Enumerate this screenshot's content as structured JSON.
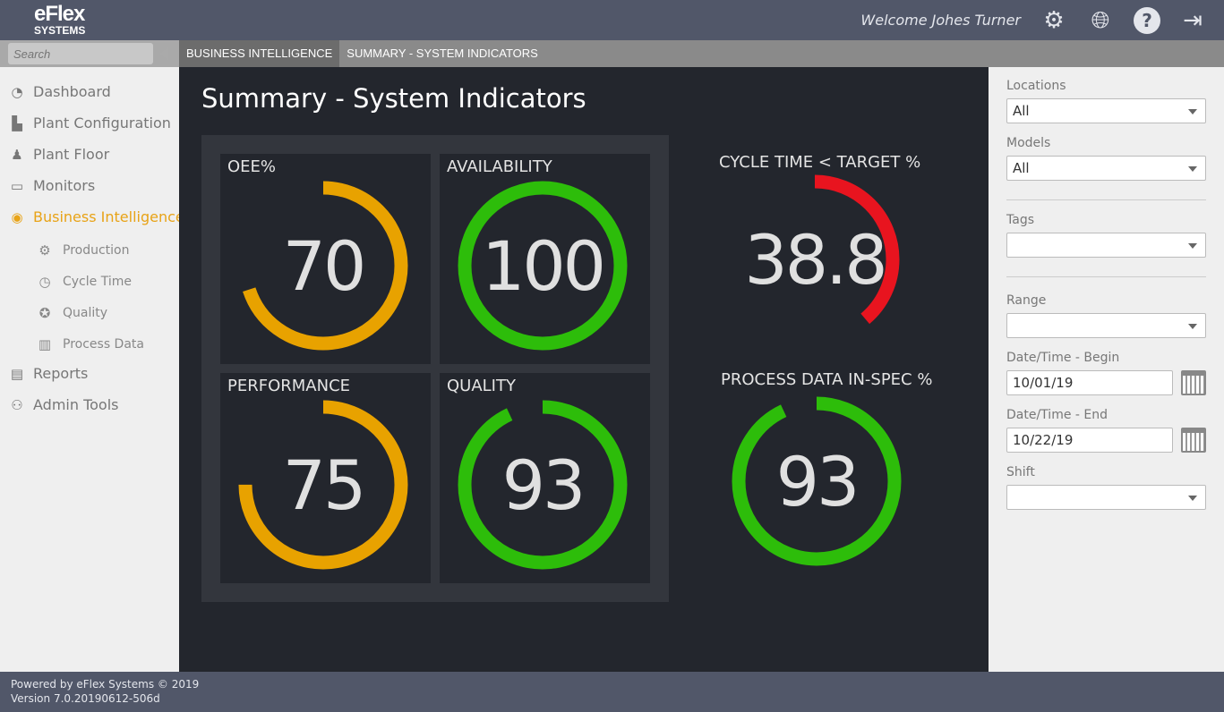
{
  "header": {
    "logo_line1": "eFlex",
    "logo_line2": "SYSTEMS",
    "welcome": "Welcome  Johes Turner"
  },
  "search": {
    "placeholder": "Search"
  },
  "breadcrumb": [
    "BUSINESS INTELLIGENCE",
    "SUMMARY - SYSTEM INDICATORS"
  ],
  "sidebar": {
    "items": [
      {
        "label": "Dashboard",
        "icon": "gauge-icon"
      },
      {
        "label": "Plant Configuration",
        "icon": "factory-icon"
      },
      {
        "label": "Plant Floor",
        "icon": "conveyor-icon"
      },
      {
        "label": "Monitors",
        "icon": "monitor-icon"
      },
      {
        "label": "Business Intelligence",
        "icon": "bi-search-icon",
        "active": true
      },
      {
        "label": "Reports",
        "icon": "report-icon"
      },
      {
        "label": "Admin Tools",
        "icon": "user-gear-icon"
      }
    ],
    "subitems": [
      {
        "label": "Production"
      },
      {
        "label": "Cycle Time"
      },
      {
        "label": "Quality"
      },
      {
        "label": "Process Data"
      }
    ]
  },
  "main": {
    "title": "Summary - System Indicators",
    "gauges": [
      {
        "label": "OEE%",
        "value": "70",
        "percent": 70,
        "color": "#e8a200"
      },
      {
        "label": "AVAILABILITY",
        "value": "100",
        "percent": 100,
        "color": "#2dbd0a"
      },
      {
        "label": "PERFORMANCE",
        "value": "75",
        "percent": 75,
        "color": "#e8a200"
      },
      {
        "label": "QUALITY",
        "value": "93",
        "percent": 93,
        "color": "#2dbd0a"
      },
      {
        "label": "CYCLE TIME < TARGET %",
        "value": "38.8",
        "percent": 38.8,
        "color": "#e8141f"
      },
      {
        "label": "PROCESS DATA IN-SPEC %",
        "value": "93",
        "percent": 93,
        "color": "#2dbd0a"
      }
    ]
  },
  "filters": {
    "locations": {
      "label": "Locations",
      "value": "All"
    },
    "models": {
      "label": "Models",
      "value": "All"
    },
    "tags": {
      "label": "Tags",
      "value": ""
    },
    "range": {
      "label": "Range",
      "value": ""
    },
    "begin": {
      "label": "Date/Time - Begin",
      "value": "10/01/19"
    },
    "end": {
      "label": "Date/Time - End",
      "value": "10/22/19"
    },
    "shift": {
      "label": "Shift",
      "value": ""
    }
  },
  "footer": {
    "line1": "Powered by eFlex Systems © 2019",
    "line2": "Version 7.0.20190612-506d"
  }
}
